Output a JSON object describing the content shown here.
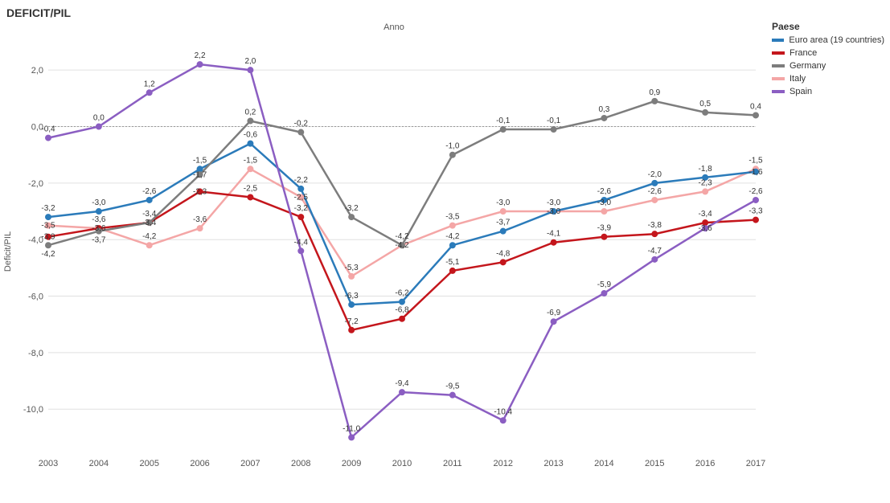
{
  "title": "DEFICIT/PIL",
  "x_axis_label": "Anno",
  "y_axis_label": "Deficit/PIL",
  "legend_title": "Paese",
  "background_color": "#ffffff",
  "grid_color": "#e0e0e0",
  "zero_line_color": "#999999",
  "text_color": "#333333",
  "title_fontsize": 14,
  "axis_label_fontsize": 11,
  "value_label_fontsize": 10,
  "line_width": 2.5,
  "marker_radius": 3.0,
  "categories": [
    "2003",
    "2004",
    "2005",
    "2006",
    "2007",
    "2008",
    "2009",
    "2010",
    "2011",
    "2012",
    "2013",
    "2014",
    "2015",
    "2016",
    "2017"
  ],
  "ylim": [
    -11.5,
    3.0
  ],
  "yticks": [
    -10.0,
    -8.0,
    -6.0,
    -4.0,
    -2.0,
    0.0,
    2.0
  ],
  "ytick_labels": [
    "-10,0",
    "-8,0",
    "-6,0",
    "-4,0",
    "-2,0",
    "0,0",
    "2,0"
  ],
  "series": [
    {
      "name": "Euro area (19 countries)",
      "color": "#2b7bba",
      "values": [
        -3.2,
        -3.0,
        -2.6,
        -1.5,
        -0.6,
        -2.2,
        -6.3,
        -6.2,
        -4.2,
        -3.7,
        -3.0,
        -2.6,
        -2.0,
        -1.8,
        -1.6
      ],
      "labels": [
        "-3,2",
        "-3,0",
        "-2,6",
        "-1,5",
        "-0,6",
        "-2,2",
        "-6,3",
        "-6,2",
        "-4,2",
        "-3,7",
        "-3,0",
        "-2,6",
        "-2,0",
        "-1,8",
        "-1,6"
      ]
    },
    {
      "name": "France",
      "color": "#c4161c",
      "values": [
        -3.9,
        -3.6,
        -3.4,
        -2.3,
        -2.5,
        -3.2,
        -7.2,
        -6.8,
        -5.1,
        -4.8,
        -4.1,
        -3.9,
        -3.8,
        -3.4,
        -3.3
      ],
      "labels": [
        "-3,9",
        "-3,6",
        "-3,4",
        "-2,3",
        "-2,5",
        "-3,2",
        "-7,2",
        "-6,8",
        "-5,1",
        "-4,8",
        "-4,1",
        "-3,9",
        "-3,8",
        "-3,4",
        "-3,3"
      ]
    },
    {
      "name": "Germany",
      "color": "#7d7d7d",
      "values": [
        -4.2,
        -3.7,
        -3.4,
        -1.7,
        0.2,
        -0.2,
        -3.2,
        -4.2,
        -1.0,
        -0.1,
        -0.1,
        0.3,
        0.9,
        0.5,
        0.4
      ],
      "labels": [
        "-4,2",
        "-3,7",
        "-3,4",
        "-1,7",
        "0,2",
        "-0,2",
        "-3,2",
        "-4,2",
        "-1,0",
        "-0,1",
        "-0,1",
        "0,3",
        "0,9",
        "0,5",
        "0,4"
      ]
    },
    {
      "name": "Italy",
      "color": "#f4a6a6",
      "values": [
        -3.5,
        -3.6,
        -4.2,
        -3.6,
        -1.5,
        -2.5,
        -5.3,
        -4.2,
        -3.5,
        -3.0,
        -3.0,
        -3.0,
        -2.6,
        -2.3,
        -1.5
      ],
      "labels": [
        "-3,5",
        "-3,6",
        "-4,2",
        "-3,6",
        "-1,5",
        "-2,5",
        "-5,3",
        "-4,2",
        "-3,5",
        "-3,0",
        "-3,0",
        "-3,0",
        "-2,6",
        "-2,3",
        "-1,5"
      ]
    },
    {
      "name": "Spain",
      "color": "#8b5ec2",
      "values": [
        -0.4,
        0.0,
        1.2,
        2.2,
        2.0,
        -4.4,
        -11.0,
        -9.4,
        -9.5,
        -10.4,
        -6.9,
        -5.9,
        -4.7,
        -3.6,
        -2.6
      ],
      "labels": [
        "-0,4",
        "0,0",
        "1,2",
        "2,2",
        "2,0",
        "-4,4",
        "-11,0",
        "-9,4",
        "-9,5",
        "-10,4",
        "-6,9",
        "-5,9",
        "-4,7",
        "-3,6",
        "-2,6"
      ]
    }
  ]
}
